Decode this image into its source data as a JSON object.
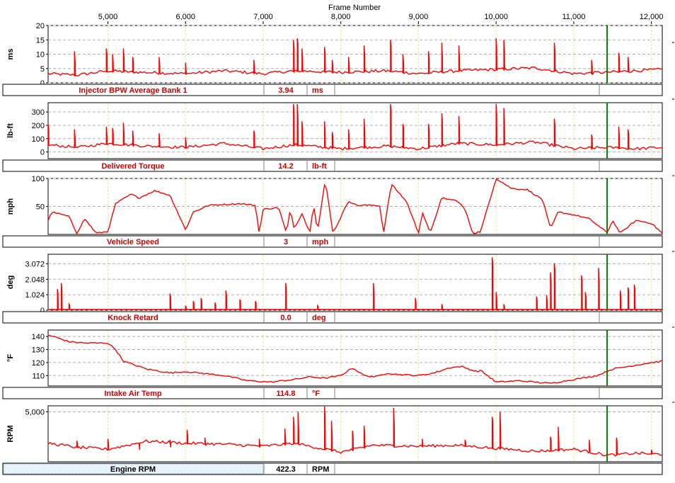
{
  "x_axis": {
    "title": "Frame Number",
    "min": 4230,
    "max": 12140,
    "ticks": [
      {
        "value": 5000,
        "label": "5,000"
      },
      {
        "value": 6000,
        "label": "6,000"
      },
      {
        "value": 7000,
        "label": "7,000"
      },
      {
        "value": 8000,
        "label": "8,000"
      },
      {
        "value": 9000,
        "label": "9,000"
      },
      {
        "value": 10000,
        "label": "10,000"
      },
      {
        "value": 11000,
        "label": "11,000"
      },
      {
        "value": 12000,
        "label": "12,000"
      }
    ]
  },
  "cursor": {
    "frame": 11430,
    "color": "#008000"
  },
  "colors": {
    "trace": "#ff0000",
    "label_text": "#cc0000",
    "grid_dash": "#b0b0b0",
    "grid_vertical": "#f0e68c",
    "selected_label_bg": "#e8f4fc"
  },
  "chart_data": [
    {
      "type": "line",
      "name": "Injector BPW Average Bank 1",
      "unit": "ms",
      "ylabel": "ms",
      "value": "3.94",
      "ylim": [
        0,
        20
      ],
      "yticks": [
        {
          "value": 0,
          "label": "0"
        },
        {
          "value": 5,
          "label": "5"
        },
        {
          "value": 10,
          "label": "10"
        },
        {
          "value": 15,
          "label": "15"
        },
        {
          "value": 20,
          "label": "20"
        }
      ],
      "baseline": [
        [
          4230,
          3
        ],
        [
          4600,
          2.5
        ],
        [
          5000,
          4
        ],
        [
          5400,
          3.5
        ],
        [
          6000,
          3
        ],
        [
          6500,
          4
        ],
        [
          7000,
          3
        ],
        [
          7400,
          4
        ],
        [
          8000,
          3.5
        ],
        [
          8600,
          4
        ],
        [
          9000,
          3
        ],
        [
          9500,
          4
        ],
        [
          10000,
          4.5
        ],
        [
          10500,
          5
        ],
        [
          11000,
          3
        ],
        [
          11430,
          3.5
        ],
        [
          11800,
          4
        ],
        [
          12140,
          4.5
        ]
      ],
      "spikes": [
        [
          4570,
          11
        ],
        [
          4980,
          12
        ],
        [
          5060,
          10
        ],
        [
          5200,
          12
        ],
        [
          5320,
          9
        ],
        [
          5660,
          9
        ],
        [
          6000,
          7
        ],
        [
          6880,
          8
        ],
        [
          7390,
          15
        ],
        [
          7440,
          15.5
        ],
        [
          7500,
          12
        ],
        [
          7790,
          12.5
        ],
        [
          7890,
          8
        ],
        [
          8100,
          9
        ],
        [
          8300,
          13
        ],
        [
          8640,
          15
        ],
        [
          8800,
          10
        ],
        [
          9130,
          11
        ],
        [
          9300,
          14
        ],
        [
          9520,
          13
        ],
        [
          10000,
          15.5
        ],
        [
          10100,
          15
        ],
        [
          10750,
          14
        ],
        [
          11230,
          8
        ],
        [
          11580,
          10.5
        ],
        [
          11700,
          9
        ]
      ]
    },
    {
      "type": "line",
      "name": "Delivered Torque",
      "unit": "lb-ft",
      "ylabel": "lb-ft",
      "value": "14.2",
      "ylim": [
        -50,
        370
      ],
      "yticks": [
        {
          "value": 0,
          "label": "0"
        },
        {
          "value": 100,
          "label": "100"
        },
        {
          "value": 200,
          "label": "200"
        },
        {
          "value": 300,
          "label": "300"
        }
      ],
      "baseline": [
        [
          4230,
          50
        ],
        [
          4600,
          30
        ],
        [
          5000,
          60
        ],
        [
          5500,
          40
        ],
        [
          6000,
          30
        ],
        [
          6500,
          60
        ],
        [
          7000,
          20
        ],
        [
          7400,
          50
        ],
        [
          8000,
          20
        ],
        [
          8600,
          40
        ],
        [
          9000,
          20
        ],
        [
          9500,
          60
        ],
        [
          10000,
          50
        ],
        [
          10500,
          70
        ],
        [
          11000,
          20
        ],
        [
          11430,
          30
        ],
        [
          11800,
          20
        ],
        [
          12140,
          30
        ]
      ],
      "spikes": [
        [
          4230,
          210
        ],
        [
          4570,
          170
        ],
        [
          4980,
          190
        ],
        [
          5060,
          180
        ],
        [
          5200,
          220
        ],
        [
          5320,
          160
        ],
        [
          5660,
          140
        ],
        [
          6000,
          110
        ],
        [
          6880,
          160
        ],
        [
          7390,
          360
        ],
        [
          7440,
          360
        ],
        [
          7500,
          230
        ],
        [
          7790,
          230
        ],
        [
          7890,
          150
        ],
        [
          8100,
          170
        ],
        [
          8300,
          250
        ],
        [
          8640,
          360
        ],
        [
          8800,
          210
        ],
        [
          9130,
          210
        ],
        [
          9300,
          290
        ],
        [
          9520,
          270
        ],
        [
          10000,
          360
        ],
        [
          10100,
          330
        ],
        [
          10750,
          250
        ],
        [
          11230,
          130
        ],
        [
          11580,
          190
        ],
        [
          11700,
          170
        ]
      ]
    },
    {
      "type": "line",
      "name": "Vehicle Speed",
      "unit": "mph",
      "ylabel": "mph",
      "value": "3",
      "ylim": [
        0,
        100
      ],
      "yticks": [
        {
          "value": 50,
          "label": "50"
        },
        {
          "value": 100,
          "label": "100"
        }
      ],
      "points": [
        [
          4230,
          25
        ],
        [
          4280,
          40
        ],
        [
          4500,
          32
        ],
        [
          4600,
          2
        ],
        [
          4700,
          28
        ],
        [
          4850,
          2
        ],
        [
          5000,
          5
        ],
        [
          5100,
          55
        ],
        [
          5300,
          72
        ],
        [
          5400,
          65
        ],
        [
          5600,
          78
        ],
        [
          5800,
          70
        ],
        [
          6000,
          8
        ],
        [
          6100,
          40
        ],
        [
          6300,
          52
        ],
        [
          6700,
          55
        ],
        [
          6900,
          52
        ],
        [
          6950,
          2
        ],
        [
          7000,
          45
        ],
        [
          7200,
          48
        ],
        [
          7300,
          2
        ],
        [
          7350,
          45
        ],
        [
          7400,
          10
        ],
        [
          7500,
          38
        ],
        [
          7600,
          2
        ],
        [
          7650,
          55
        ],
        [
          7700,
          5
        ],
        [
          7800,
          97
        ],
        [
          7900,
          2
        ],
        [
          8100,
          60
        ],
        [
          8200,
          52
        ],
        [
          8500,
          52
        ],
        [
          8550,
          2
        ],
        [
          8650,
          90
        ],
        [
          8850,
          58
        ],
        [
          9000,
          2
        ],
        [
          9050,
          40
        ],
        [
          9150,
          2
        ],
        [
          9300,
          65
        ],
        [
          9500,
          60
        ],
        [
          9600,
          45
        ],
        [
          9700,
          2
        ],
        [
          9800,
          5
        ],
        [
          10000,
          100
        ],
        [
          10200,
          82
        ],
        [
          10400,
          80
        ],
        [
          10600,
          62
        ],
        [
          10700,
          10
        ],
        [
          10800,
          40
        ],
        [
          11000,
          35
        ],
        [
          11200,
          28
        ],
        [
          11430,
          3
        ],
        [
          11500,
          25
        ],
        [
          11600,
          2
        ],
        [
          11800,
          25
        ],
        [
          12000,
          20
        ],
        [
          12140,
          2
        ]
      ]
    },
    {
      "type": "line",
      "name": "Knock Retard",
      "unit": "deg",
      "ylabel": "deg",
      "value": "0.0",
      "ylim": [
        0,
        3.7
      ],
      "yticks": [
        {
          "value": 0,
          "label": "0"
        },
        {
          "value": 1.024,
          "label": "1.024"
        },
        {
          "value": 2.048,
          "label": "2.048"
        },
        {
          "value": 3.072,
          "label": "3.072"
        }
      ],
      "spikes": [
        [
          4350,
          1.4
        ],
        [
          4400,
          1.8
        ],
        [
          4500,
          0.4
        ],
        [
          5800,
          1.1
        ],
        [
          6000,
          0.3
        ],
        [
          6100,
          0.6
        ],
        [
          6200,
          0.8
        ],
        [
          6380,
          0.5
        ],
        [
          6520,
          1.3
        ],
        [
          6700,
          0.7
        ],
        [
          6900,
          0.6
        ],
        [
          7290,
          1.8
        ],
        [
          7700,
          0.3
        ],
        [
          8420,
          1.8
        ],
        [
          8960,
          0.8
        ],
        [
          9300,
          0.4
        ],
        [
          9950,
          3.5
        ],
        [
          10000,
          1.2
        ],
        [
          10100,
          0.4
        ],
        [
          10520,
          0.9
        ],
        [
          10650,
          1.0
        ],
        [
          10700,
          2.5
        ],
        [
          10750,
          3.1
        ],
        [
          11100,
          2.3
        ],
        [
          11150,
          1.2
        ],
        [
          11320,
          2.8
        ],
        [
          11600,
          1.3
        ],
        [
          11700,
          1.5
        ],
        [
          11780,
          1.7
        ]
      ]
    },
    {
      "type": "line",
      "name": "Intake Air Temp",
      "unit": "°F",
      "ylabel": "°F",
      "value": "114.8",
      "ylim": [
        102,
        145
      ],
      "yticks": [
        {
          "value": 110,
          "label": "110"
        },
        {
          "value": 120,
          "label": "120"
        },
        {
          "value": 130,
          "label": "130"
        },
        {
          "value": 140,
          "label": "140"
        }
      ],
      "points": [
        [
          4230,
          141
        ],
        [
          4300,
          140
        ],
        [
          4500,
          136
        ],
        [
          4700,
          135
        ],
        [
          5000,
          135
        ],
        [
          5100,
          130
        ],
        [
          5200,
          121
        ],
        [
          5500,
          115
        ],
        [
          5800,
          112
        ],
        [
          6000,
          113
        ],
        [
          6500,
          110
        ],
        [
          6800,
          106
        ],
        [
          7100,
          105
        ],
        [
          7400,
          107
        ],
        [
          7600,
          109
        ],
        [
          7800,
          108
        ],
        [
          8000,
          110
        ],
        [
          8150,
          116
        ],
        [
          8300,
          110
        ],
        [
          8450,
          109
        ],
        [
          8600,
          112
        ],
        [
          8700,
          111
        ],
        [
          9000,
          110
        ],
        [
          9200,
          112
        ],
        [
          9400,
          116
        ],
        [
          9550,
          117
        ],
        [
          9750,
          113
        ],
        [
          9800,
          114
        ],
        [
          10000,
          105
        ],
        [
          10300,
          106
        ],
        [
          10700,
          104
        ],
        [
          11000,
          107
        ],
        [
          11300,
          110
        ],
        [
          11500,
          115
        ],
        [
          11700,
          117
        ],
        [
          12000,
          120
        ],
        [
          12140,
          121
        ]
      ]
    },
    {
      "type": "line",
      "name": "Engine RPM",
      "unit": "RPM",
      "ylabel": "RPM",
      "value": "422.3",
      "ylim": [
        0,
        5600
      ],
      "yticks": [
        {
          "value": 5000,
          "label": "5,000"
        }
      ],
      "baseline": [
        [
          4230,
          1800
        ],
        [
          4600,
          1400
        ],
        [
          5000,
          1200
        ],
        [
          5500,
          2000
        ],
        [
          6000,
          1800
        ],
        [
          6500,
          1700
        ],
        [
          7000,
          1500
        ],
        [
          7400,
          1800
        ],
        [
          8000,
          900
        ],
        [
          8400,
          1600
        ],
        [
          9000,
          1500
        ],
        [
          9500,
          1600
        ],
        [
          10000,
          1300
        ],
        [
          10500,
          1000
        ],
        [
          11000,
          1200
        ],
        [
          11430,
          600
        ],
        [
          11800,
          800
        ],
        [
          12140,
          700
        ]
      ],
      "spikes": [
        [
          4600,
          2100
        ],
        [
          5000,
          2300
        ],
        [
          5400,
          1900
        ],
        [
          5800,
          2200
        ],
        [
          6020,
          3200
        ],
        [
          6250,
          2400
        ],
        [
          6950,
          2300
        ],
        [
          7280,
          3300
        ],
        [
          7390,
          4500
        ],
        [
          7450,
          5000
        ],
        [
          7790,
          5600
        ],
        [
          7880,
          4100
        ],
        [
          8150,
          3100
        ],
        [
          8300,
          3600
        ],
        [
          8680,
          5400
        ],
        [
          9050,
          2300
        ],
        [
          9600,
          2200
        ],
        [
          9950,
          4500
        ],
        [
          10050,
          5000
        ],
        [
          10700,
          2500
        ],
        [
          10800,
          3500
        ],
        [
          11200,
          2200
        ],
        [
          11550,
          2400
        ],
        [
          12000,
          1200
        ]
      ]
    }
  ]
}
